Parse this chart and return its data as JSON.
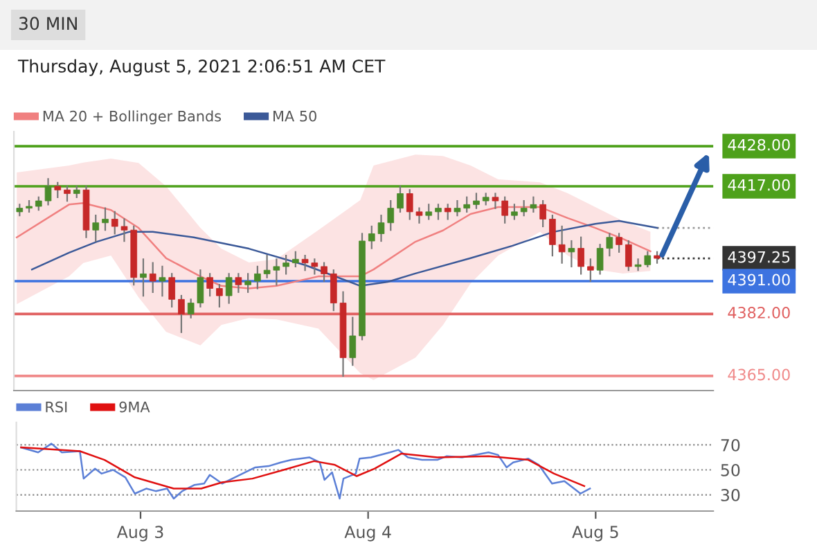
{
  "chart_data": [
    {
      "type": "candlestick",
      "title": "30 MIN",
      "subtitle": "Thursday, August 5, 2021 2:06:51 AM CET",
      "x": [
        "2021-08-02T11:30",
        "2021-08-02T12:30",
        "2021-08-02T13:30",
        "2021-08-02T14:30",
        "2021-08-02T15:30",
        "2021-08-02T16:30",
        "2021-08-02T17:30",
        "2021-08-02T18:30",
        "2021-08-02T19:30",
        "2021-08-02T20:30",
        "2021-08-02T21:30",
        "2021-08-02T22:30",
        "2021-08-02T23:30",
        "2021-08-03T00:30",
        "2021-08-03T01:30",
        "2021-08-03T02:30",
        "2021-08-03T03:30",
        "2021-08-03T04:30",
        "2021-08-03T05:30",
        "2021-08-03T06:30",
        "2021-08-03T07:30",
        "2021-08-03T08:30",
        "2021-08-03T09:30",
        "2021-08-03T10:30",
        "2021-08-03T11:30",
        "2021-08-03T12:30",
        "2021-08-03T13:30",
        "2021-08-03T14:30",
        "2021-08-03T15:30",
        "2021-08-03T16:30",
        "2021-08-03T17:30",
        "2021-08-03T18:30",
        "2021-08-03T19:30",
        "2021-08-03T20:30",
        "2021-08-03T21:30",
        "2021-08-03T22:30",
        "2021-08-03T23:30",
        "2021-08-04T00:30",
        "2021-08-04T01:30",
        "2021-08-04T02:30",
        "2021-08-04T03:30",
        "2021-08-04T04:30",
        "2021-08-04T05:30",
        "2021-08-04T06:30",
        "2021-08-04T07:30",
        "2021-08-04T08:30",
        "2021-08-04T09:30",
        "2021-08-04T10:30",
        "2021-08-04T11:30",
        "2021-08-04T12:30",
        "2021-08-04T13:30",
        "2021-08-04T14:30",
        "2021-08-04T15:30",
        "2021-08-04T16:30",
        "2021-08-04T17:30",
        "2021-08-04T18:30",
        "2021-08-04T19:30",
        "2021-08-04T20:30",
        "2021-08-04T21:30",
        "2021-08-04T22:30",
        "2021-08-04T23:30",
        "2021-08-05T00:30",
        "2021-08-05T01:30",
        "2021-08-05T02:30",
        "2021-08-05T03:30",
        "2021-08-05T04:30",
        "2021-08-05T05:30",
        "2021-08-05T06:30"
      ],
      "ohlc": [
        [
          4410,
          4412,
          4409,
          4411
        ],
        [
          4411,
          4413,
          4410,
          4411.5
        ],
        [
          4411.5,
          4414,
          4410.5,
          4413
        ],
        [
          4413,
          4419,
          4412,
          4417
        ],
        [
          4417,
          4418,
          4414,
          4416
        ],
        [
          4416,
          4417,
          4413,
          4415
        ],
        [
          4415,
          4417,
          4414,
          4416
        ],
        [
          4416,
          4417,
          4403,
          4405
        ],
        [
          4405,
          4409,
          4402,
          4407
        ],
        [
          4407,
          4411,
          4405,
          4408
        ],
        [
          4408,
          4410,
          4404,
          4406
        ],
        [
          4406,
          4408,
          4402,
          4405
        ],
        [
          4405,
          4406,
          4390,
          4392
        ],
        [
          4392,
          4397,
          4387,
          4393
        ],
        [
          4393,
          4396,
          4388,
          4391
        ],
        [
          4391,
          4395,
          4387,
          4392
        ],
        [
          4392,
          4393,
          4384,
          4386
        ],
        [
          4386,
          4387,
          4377,
          4382
        ],
        [
          4382,
          4386,
          4381,
          4385
        ],
        [
          4385,
          4394,
          4384,
          4392
        ],
        [
          4392,
          4393,
          4387,
          4389
        ],
        [
          4389,
          4390,
          4384,
          4387
        ],
        [
          4387,
          4393,
          4385,
          4392
        ],
        [
          4392,
          4393,
          4388,
          4390
        ],
        [
          4390,
          4393,
          4388,
          4391
        ],
        [
          4391,
          4395,
          4389,
          4393
        ],
        [
          4393,
          4398,
          4392,
          4394
        ],
        [
          4394,
          4397,
          4390,
          4395
        ],
        [
          4395,
          4398,
          4393,
          4396
        ],
        [
          4396,
          4399,
          4395,
          4397
        ],
        [
          4397,
          4398,
          4394,
          4396
        ],
        [
          4396,
          4397,
          4393,
          4395
        ],
        [
          4395,
          4396,
          4391,
          4393
        ],
        [
          4393,
          4394,
          4383,
          4385
        ],
        [
          4385,
          4388,
          4365,
          4370
        ],
        [
          4370,
          4381,
          4368,
          4376
        ],
        [
          4376,
          4404,
          4375,
          4402
        ],
        [
          4402,
          4406,
          4400,
          4404
        ],
        [
          4404,
          4409,
          4402,
          4407
        ],
        [
          4407,
          4413,
          4405,
          4411
        ],
        [
          4411,
          4417,
          4410,
          4415
        ],
        [
          4415,
          4416,
          4408,
          4410
        ],
        [
          4410,
          4411,
          4407,
          4409
        ],
        [
          4409,
          4412,
          4408,
          4410
        ],
        [
          4410,
          4412,
          4408,
          4411
        ],
        [
          4411,
          4412,
          4408,
          4410
        ],
        [
          4410,
          4413,
          4409,
          4411
        ],
        [
          4411,
          4414,
          4410,
          4412
        ],
        [
          4412,
          4415,
          4411,
          4413
        ],
        [
          4413,
          4415,
          4412,
          4414
        ],
        [
          4414,
          4415,
          4411,
          4413
        ],
        [
          4413,
          4414,
          4407,
          4409
        ],
        [
          4409,
          4412,
          4408,
          4410
        ],
        [
          4410,
          4413,
          4409,
          4411
        ],
        [
          4411,
          4414,
          4410,
          4412
        ],
        [
          4412,
          4413,
          4406,
          4408
        ],
        [
          4408,
          4409,
          4398,
          4401
        ],
        [
          4401,
          4406,
          4396,
          4399
        ],
        [
          4399,
          4402,
          4395,
          4400
        ],
        [
          4400,
          4403,
          4393,
          4395
        ],
        [
          4395,
          4397,
          4391,
          4394
        ],
        [
          4394,
          4401,
          4393,
          4400
        ],
        [
          4400,
          4404,
          4398,
          4403
        ],
        [
          4403,
          4404,
          4399,
          4401
        ],
        [
          4401,
          4402,
          4394,
          4395
        ],
        [
          4395,
          4397,
          4394,
          4395.5
        ],
        [
          4395.5,
          4399,
          4395,
          4398
        ],
        [
          4398,
          4399,
          4396,
          4397.25
        ]
      ],
      "series": [
        {
          "type": "line",
          "name": "MA 20 + Bollinger Bands",
          "color": "#f08080",
          "x": [
            "2021-08-02T11:12",
            "2021-08-02T16:42",
            "2021-08-02T18:12",
            "2021-08-02T21:06",
            "2021-08-03T00:00",
            "2021-08-03T02:54",
            "2021-08-03T06:30",
            "2021-08-03T08:42",
            "2021-08-03T11:36",
            "2021-08-03T14:30",
            "2021-08-03T18:54",
            "2021-08-03T23:18",
            "2021-08-04T00:42",
            "2021-08-04T05:06",
            "2021-08-04T08:00",
            "2021-08-04T10:54",
            "2021-08-04T13:48",
            "2021-08-04T18:12",
            "2021-08-04T21:06",
            "2021-08-05T00:00",
            "2021-08-05T02:54",
            "2021-08-05T05:48"
          ],
          "values": [
            4403,
            4412,
            4412.4,
            4410.5,
            4405.6,
            4397.3,
            4392.3,
            4389.7,
            4389,
            4389.7,
            4392.3,
            4392.3,
            4394.2,
            4401.8,
            4404.9,
            4409.4,
            4411.3,
            4411.3,
            4408.3,
            4405.6,
            4402.6,
            4399.2
          ],
          "lower": [
            4384.7,
            4392.3,
            4396,
            4398,
            4386.6,
            4377.1,
            4373.4,
            4379,
            4380.9,
            4380.5,
            4378,
            4365.8,
            4363.9,
            4370,
            4379,
            4390.4,
            4398,
            4404.5,
            4398,
            4394.2,
            4393.1,
            4393.8
          ],
          "upper": [
            4420.8,
            4422.7,
            4423.5,
            4424.6,
            4423.4,
            4417,
            4405.6,
            4399.9,
            4396.1,
            4397,
            4405,
            4413.2,
            4422.7,
            4425.7,
            4425.3,
            4422.7,
            4418.9,
            4418.1,
            4415.1,
            4411.3,
            4407.5,
            4404.5
          ]
        },
        {
          "type": "line",
          "name": "MA 50",
          "color": "#3b5998",
          "x": [
            "2021-08-02T12:48",
            "2021-08-02T16:42",
            "2021-08-02T19:36",
            "2021-08-02T23:00",
            "2021-08-03T01:30",
            "2021-08-03T05:48",
            "2021-08-03T11:36",
            "2021-08-03T17:30",
            "2021-08-03T23:18",
            "2021-08-04T02:12",
            "2021-08-04T05:06",
            "2021-08-04T10:54",
            "2021-08-04T15:18",
            "2021-08-04T19:36",
            "2021-08-05T00:00",
            "2021-08-05T02:30",
            "2021-08-05T06:30"
          ],
          "values": [
            4394.2,
            4398.8,
            4401.8,
            4404.5,
            4404.5,
            4403,
            4399.9,
            4395.4,
            4389.7,
            4390.8,
            4393.1,
            4397.3,
            4400.7,
            4404.5,
            4406.7,
            4407.5,
            4405.6
          ]
        }
      ],
      "ref_lines": [
        {
          "axis": "y",
          "value": 4428,
          "label": "4428.00",
          "color": "#4ea11b"
        },
        {
          "axis": "y",
          "value": 4417,
          "label": "4417.00",
          "color": "#4ea11b"
        },
        {
          "axis": "y",
          "value": 4405.6,
          "color": "#9a9a9a",
          "line_style": "dotted"
        },
        {
          "axis": "y",
          "value": 4397.25,
          "label": "4397.25",
          "color": "#333333",
          "line_style": "dotted"
        },
        {
          "axis": "y",
          "value": 4391,
          "label": "4391.00",
          "color": "#3d73e0"
        },
        {
          "axis": "y",
          "value": 4382,
          "label": "4382.00",
          "color": "#e06060"
        },
        {
          "axis": "y",
          "value": 4365,
          "label": "4365.00",
          "color": "#f08a8a"
        }
      ],
      "xlim": [
        "2021-08-02T10:54",
        "2021-08-05T12:24"
      ],
      "ylim": [
        4361,
        4432
      ],
      "legend": "top left",
      "tick_labels": false
    },
    {
      "type": "line",
      "series": [
        {
          "type": "line",
          "name": "RSI",
          "color": "#5b7fd6",
          "x": [
            "2021-08-02T11:24",
            "2021-08-02T13:12",
            "2021-08-02T14:36",
            "2021-08-02T15:42",
            "2021-08-02T17:36",
            "2021-08-02T18:00",
            "2021-08-02T19:12",
            "2021-08-02T19:54",
            "2021-08-02T21:06",
            "2021-08-02T22:24",
            "2021-08-02T23:24",
            "2021-08-03T00:36",
            "2021-08-03T01:36",
            "2021-08-03T02:48",
            "2021-08-03T03:30",
            "2021-08-03T04:24",
            "2021-08-03T05:42",
            "2021-08-03T06:42",
            "2021-08-03T07:18",
            "2021-08-03T08:36",
            "2021-08-03T10:12",
            "2021-08-03T12:06",
            "2021-08-03T13:30",
            "2021-08-03T14:48",
            "2021-08-03T15:54",
            "2021-08-03T17:48",
            "2021-08-03T18:54",
            "2021-08-03T19:24",
            "2021-08-03T20:12",
            "2021-08-03T21:00",
            "2021-08-03T21:24",
            "2021-08-03T22:42",
            "2021-08-03T23:06",
            "2021-08-04T00:18",
            "2021-08-04T02:18",
            "2021-08-04T03:12",
            "2021-08-04T04:12",
            "2021-08-04T05:42",
            "2021-08-04T07:18",
            "2021-08-04T08:18",
            "2021-08-04T09:54",
            "2021-08-04T12:42",
            "2021-08-04T13:42",
            "2021-08-04T14:36",
            "2021-08-04T15:18",
            "2021-08-04T16:54",
            "2021-08-04T18:00",
            "2021-08-04T19:24",
            "2021-08-04T20:42",
            "2021-08-04T22:24",
            "2021-08-04T23:24"
          ],
          "values": [
            68,
            64,
            71,
            64,
            65,
            43,
            51,
            47,
            50,
            44,
            31,
            35,
            33,
            35,
            27,
            33,
            38,
            39,
            46,
            39,
            45,
            52,
            53,
            56,
            58,
            60,
            56,
            42,
            48,
            27,
            43,
            47,
            59,
            60,
            64,
            66,
            60,
            58,
            58,
            61,
            60,
            64,
            62,
            52,
            56,
            59,
            54,
            39,
            41,
            31,
            35
          ]
        },
        {
          "type": "line",
          "name": "9MA",
          "color": "#e01010",
          "x": [
            "2021-08-02T11:24",
            "2021-08-02T17:36",
            "2021-08-02T20:12",
            "2021-08-02T23:24",
            "2021-08-03T03:30",
            "2021-08-03T06:24",
            "2021-08-03T08:36",
            "2021-08-03T11:48",
            "2021-08-03T15:06",
            "2021-08-03T18:18",
            "2021-08-03T20:30",
            "2021-08-03T22:48",
            "2021-08-04T00:42",
            "2021-08-04T03:30",
            "2021-08-04T07:18",
            "2021-08-04T12:42",
            "2021-08-04T16:54",
            "2021-08-04T19:36",
            "2021-08-04T22:48"
          ],
          "values": [
            68,
            65,
            58,
            44,
            35,
            35,
            40,
            43,
            50,
            57,
            54,
            45,
            51,
            63,
            60,
            61,
            58,
            47,
            37
          ]
        }
      ],
      "xlim": [
        "2021-08-02T10:54",
        "2021-08-05T12:24"
      ],
      "xticks": [
        {
          "value": "2021-08-03",
          "label": "Aug 3"
        },
        {
          "value": "2021-08-04",
          "label": "Aug 4"
        },
        {
          "value": "2021-08-05",
          "label": "Aug 5"
        }
      ],
      "ylim": [
        17,
        88
      ],
      "yticks": [
        70,
        50,
        30
      ],
      "grid": "y",
      "legend": "top left"
    }
  ]
}
